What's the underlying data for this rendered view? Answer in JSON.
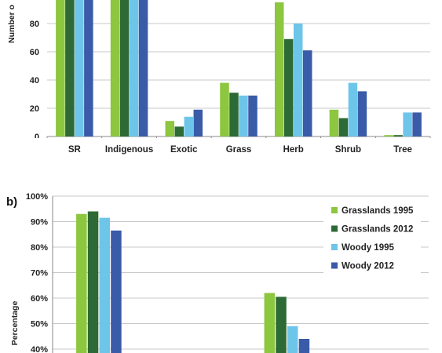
{
  "chart_data": [
    {
      "panel": "",
      "type": "bar",
      "ylabel": "Number o",
      "ylim": [
        0,
        100
      ],
      "yticks": [
        "0",
        "20",
        "40",
        "60",
        "80"
      ],
      "categories": [
        "SR",
        "Indigenous",
        "Exotic",
        "Grass",
        "Herb",
        "Shrub",
        "Tree"
      ],
      "series": [
        {
          "name": "Grasslands 1995",
          "color": "#8dc63f",
          "values": [
            110,
            110,
            11,
            38,
            95,
            19,
            1
          ]
        },
        {
          "name": "Grasslands 2012",
          "color": "#2d6a35",
          "values": [
            110,
            110,
            7,
            31,
            69,
            13,
            1
          ]
        },
        {
          "name": "Woody 1995",
          "color": "#6ec5ea",
          "values": [
            110,
            110,
            14,
            29,
            80,
            38,
            17
          ]
        },
        {
          "name": "Woody 2012",
          "color": "#3a5ba8",
          "values": [
            110,
            110,
            19,
            29,
            61,
            32,
            17
          ]
        }
      ],
      "grid": true
    },
    {
      "panel": "b)",
      "type": "bar",
      "ylabel": "Percentage",
      "ylim": [
        40,
        100
      ],
      "yticks": [
        "40%",
        "50%",
        "60%",
        "70%",
        "80%",
        "90%",
        "100%"
      ],
      "groups": 4,
      "series": [
        {
          "name": "Grasslands 1995",
          "color": "#8dc63f",
          "values": [
            93,
            null,
            62,
            null
          ]
        },
        {
          "name": "Grasslands 2012",
          "color": "#2d6a35",
          "values": [
            94,
            null,
            60.5,
            null
          ]
        },
        {
          "name": "Woody 1995",
          "color": "#6ec5ea",
          "values": [
            91.5,
            null,
            49,
            null
          ]
        },
        {
          "name": "Woody 2012",
          "color": "#3a5ba8",
          "values": [
            86.5,
            null,
            44,
            null
          ]
        }
      ],
      "legend": "top-right",
      "grid": true
    }
  ],
  "legend": {
    "items": [
      {
        "label": "Grasslands 1995",
        "color": "#8dc63f"
      },
      {
        "label": "Grasslands 2012",
        "color": "#2d6a35"
      },
      {
        "label": "Woody 1995",
        "color": "#6ec5ea"
      },
      {
        "label": "Woody 2012",
        "color": "#3a5ba8"
      }
    ]
  }
}
